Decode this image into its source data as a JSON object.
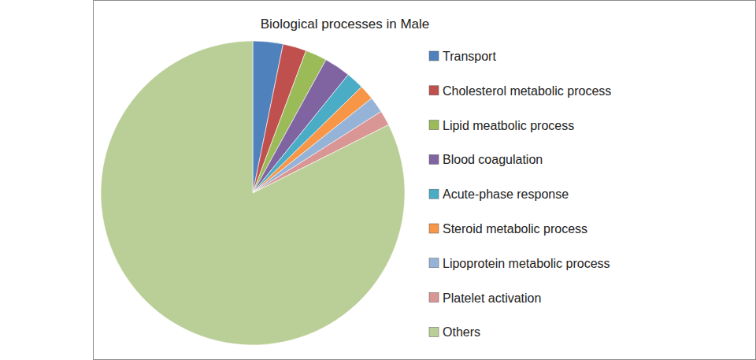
{
  "chart_data": {
    "type": "pie",
    "title": "Biological processes in Male",
    "categories": [
      "Transport",
      "Cholesterol metabolic process",
      "Lipid meatbolic process",
      "Blood coagulation",
      "Acute-phase response",
      "Steroid metabolic process",
      "Lipoprotein metabolic process",
      "Platelet activation",
      "Others"
    ],
    "values": [
      3.2,
      2.5,
      2.3,
      2.8,
      1.9,
      1.6,
      1.7,
      1.6,
      82.4
    ],
    "colors": [
      "#4f81bd",
      "#c0504d",
      "#9bbb59",
      "#8064a2",
      "#4bacc6",
      "#f79646",
      "#95b3d7",
      "#d99694",
      "#bacf97"
    ],
    "legend": "right"
  }
}
